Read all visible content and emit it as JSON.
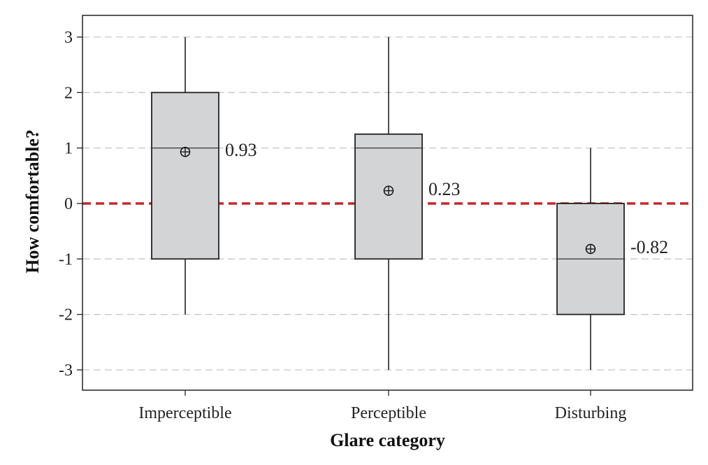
{
  "chart_data": {
    "type": "box",
    "xlabel": "Glare category",
    "ylabel": "How comfortable?",
    "ylim": [
      -3.35,
      3.5
    ],
    "yticks": [
      3,
      2,
      1,
      0,
      -1,
      -2,
      -3
    ],
    "ytick_labels": [
      "3",
      "2",
      "1",
      "0",
      "-1",
      "-2",
      "-3"
    ],
    "grid": true,
    "reference_line": {
      "y": 0,
      "color": "#c62828",
      "style": "dashed"
    },
    "box_fill": "#d3d4d6",
    "categories": [
      "Imperceptible",
      "Perceptible",
      "Disturbing"
    ],
    "boxes": [
      {
        "category": "Imperceptible",
        "whisker_low": -2,
        "q1": -1,
        "median": 1,
        "q3": 2,
        "whisker_high": 3,
        "mean": 0.93,
        "mean_label": "0.93"
      },
      {
        "category": "Perceptible",
        "whisker_low": -3,
        "q1": -1,
        "median": 1,
        "q3": 1.25,
        "whisker_high": 3,
        "mean": 0.23,
        "mean_label": "0.23"
      },
      {
        "category": "Disturbing",
        "whisker_low": -3,
        "q1": -2,
        "median": -1,
        "q3": 0,
        "whisker_high": 1,
        "mean": -0.82,
        "mean_label": "-0.82"
      }
    ]
  }
}
